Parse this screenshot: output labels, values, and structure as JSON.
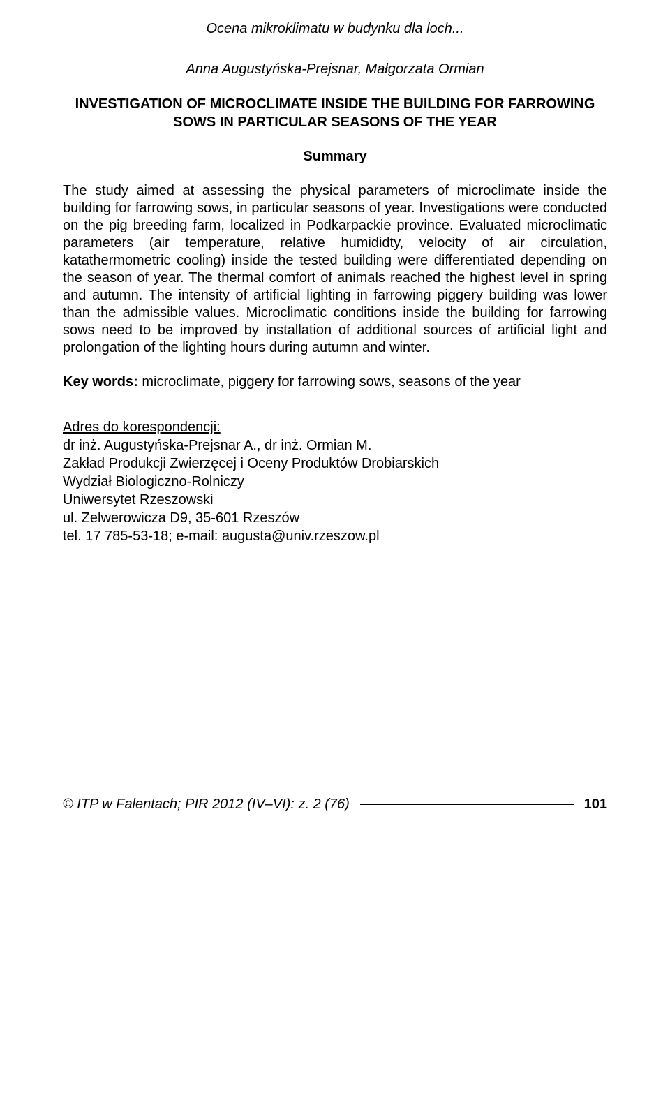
{
  "header": {
    "running_title": "Ocena mikroklimatu w budynku dla loch..."
  },
  "authors": "Anna Augustyńska-Prejsnar, Małgorzata Ormian",
  "title": "INVESTIGATION OF MICROCLIMATE INSIDE THE BUILDING FOR FARROWING SOWS IN PARTICULAR SEASONS OF THE YEAR",
  "summary_label": "Summary",
  "abstract": "The study aimed at assessing the physical parameters of microclimate inside the building for farrowing sows, in particular seasons of year. Investigations were conducted on the pig breeding farm, localized in Podkarpackie province. Evaluated microclimatic parameters (air temperature, relative humididty, velocity of air circulation, katathermometric cooling) inside the tested building were differentiated depending on the season of year. The thermal comfort of animals reached the highest level in spring and autumn. The intensity of artificial lighting in farrowing piggery building was lower than the admissible values. Microclimatic conditions inside the building for farrowing sows need to be improved by installation of additional sources of artificial light and prolongation of the lighting hours during autumn and winter.",
  "keywords": {
    "label": "Key words:",
    "text": "microclimate, piggery for farrowing sows, seasons of the year"
  },
  "correspondence": {
    "label": "Adres do korespondencji:",
    "line1": "dr inż. Augustyńska-Prejsnar A., dr inż. Ormian M.",
    "line2": "Zakład Produkcji Zwierzęcej i Oceny Produktów Drobiarskich",
    "line3": "Wydział Biologiczno-Rolniczy",
    "line4": "Uniwersytet Rzeszowski",
    "line5": "ul. Zelwerowicza D9, 35-601 Rzeszów",
    "line6": "tel. 17 785-53-18; e-mail: augusta@univ.rzeszow.pl"
  },
  "footer": {
    "text": "© ITP w Falentach; PIR 2012 (IV–VI): z. 2 (76)",
    "page": "101"
  }
}
